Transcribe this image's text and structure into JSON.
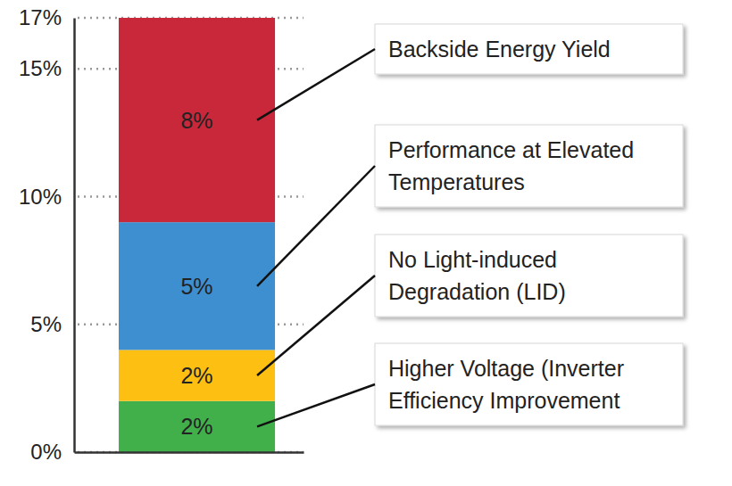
{
  "chart_data": {
    "type": "bar",
    "stacked": true,
    "data_labels": true,
    "grid": true,
    "tick_labels": "y",
    "categories": [
      null
    ],
    "series": [
      {
        "name": "Higher Voltage (Inverter Efficiency Improvement",
        "color": "#41b04b",
        "values": [
          2
        ],
        "value_labels": [
          "2%"
        ]
      },
      {
        "name": "No Light-induced Degradation (LID)",
        "color": "#fdbf12",
        "values": [
          2
        ],
        "value_labels": [
          "2%"
        ]
      },
      {
        "name": "Performance at Elevated Temperatures",
        "color": "#3e8fd0",
        "values": [
          5
        ],
        "value_labels": [
          "5%"
        ]
      },
      {
        "name": "Backside Energy Yield",
        "color": "#c9283b",
        "values": [
          8
        ],
        "value_labels": [
          "8%"
        ]
      }
    ],
    "ylim": [
      0,
      17
    ],
    "yticks": [
      {
        "value": 0,
        "label": "0%"
      },
      {
        "value": 5,
        "label": "5%"
      },
      {
        "value": 10,
        "label": "10%"
      },
      {
        "value": 15,
        "label": "15%"
      },
      {
        "value": 17,
        "label": "17%"
      }
    ]
  }
}
